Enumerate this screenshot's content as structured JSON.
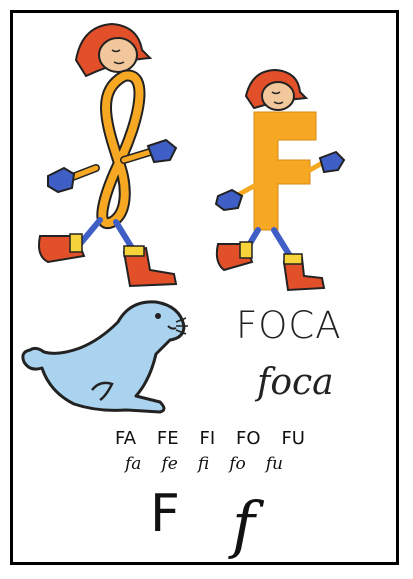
{
  "card": {
    "word_print": "FOCA",
    "word_script": "foca",
    "syllables_print": [
      "FA",
      "FE",
      "FI",
      "FO",
      "FU"
    ],
    "syllables_script": [
      "fa",
      "fe",
      "fi",
      "fo",
      "fu"
    ],
    "letter_print": "F",
    "letter_script": "f"
  },
  "colors": {
    "letter_fill": "#f6a823",
    "helmet": "#e2502a",
    "boot": "#e2502a",
    "glove": "#3f5fc7",
    "seal": "#a9d3ee",
    "skin": "#f3c79c"
  },
  "icons": {
    "character_script": "script-f-fireman-character",
    "character_print": "print-f-fireman-character",
    "animal": "seal-illustration"
  }
}
